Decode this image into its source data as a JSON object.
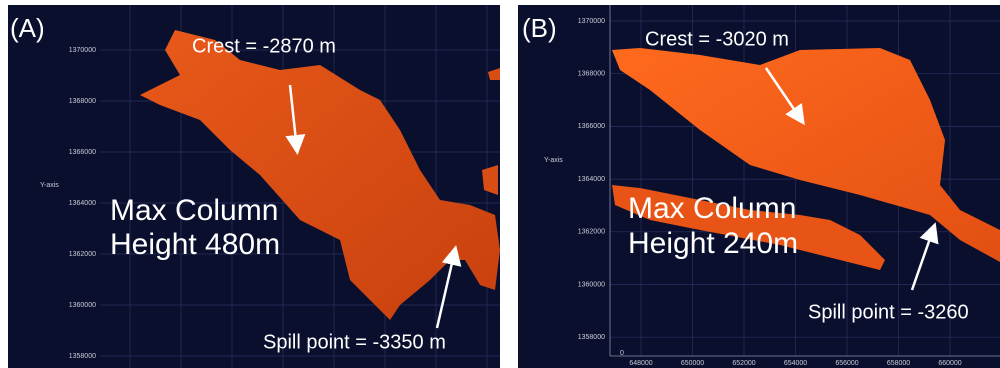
{
  "panels": [
    {
      "label": "(A)",
      "crest": "Crest = -2870 m",
      "spill": "Spill point = -3350 m",
      "column": [
        "Max Column",
        "Height 480m"
      ],
      "y_axis_label": "Y-axis",
      "yticks": [
        "1370000",
        "1368000",
        "1366000",
        "1364000",
        "1362000",
        "1360000",
        "1358000"
      ]
    },
    {
      "label": "(B)",
      "crest": "Crest = -3020 m",
      "spill": "Spill point = -3260",
      "column": [
        "Max Column",
        "Height 240m"
      ],
      "y_axis_label": "Y-axis",
      "yticks": [
        "1370000",
        "1368000",
        "1366000",
        "1364000",
        "1362000",
        "1360000",
        "1358000"
      ],
      "origin_label": "0",
      "xticks": [
        "648000",
        "650000",
        "652000",
        "654000",
        "656000",
        "658000",
        "660000"
      ]
    }
  ]
}
